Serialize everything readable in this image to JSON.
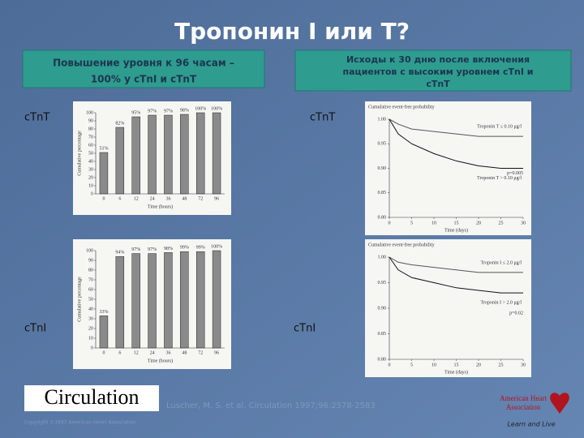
{
  "title": "Тропонин I или T?",
  "box_left": {
    "lines": [
      "Повышение уровня к 96 часам –",
      "100% у cTnI  и cTnT"
    ]
  },
  "box_right": {
    "lines": [
      "Исходы к 30 дню после включения",
      "пациентов с высоким уровнем cTnI  и",
      "cTnT"
    ]
  },
  "labels": [
    "cTnT",
    "cTnT",
    "cTnI",
    "cTnI"
  ],
  "citation": "Luscher, M. S. et al. Circulation 1997;96:2578-2583",
  "journal_logo": "Circulation",
  "copyright": "Copyright ©1997 American Heart Association",
  "aha_logo": {
    "lines": [
      "American Heart",
      "Association"
    ],
    "tagline": "Learn and Live"
  },
  "chart_data": [
    {
      "type": "bar",
      "x_label": "Time (hours)",
      "y_label": "Cumulative percentage",
      "categories": [
        "0",
        "6",
        "12",
        "24",
        "36",
        "48",
        "72",
        "96"
      ],
      "values": [
        51,
        82,
        95,
        97,
        97,
        98,
        100,
        100
      ],
      "value_labels": [
        "51%",
        "82%",
        "95%",
        "97%",
        "97%",
        "98%",
        "100%",
        "100%"
      ],
      "color": "#8a8a8a",
      "ylim": [
        0,
        100
      ],
      "yticks": [
        0,
        10,
        20,
        30,
        40,
        50,
        60,
        70,
        80,
        90,
        100
      ]
    },
    {
      "type": "bar",
      "x_label": "Time (hours)",
      "y_label": "Cumulative percentage",
      "categories": [
        "0",
        "6",
        "12",
        "24",
        "36",
        "48",
        "72",
        "96"
      ],
      "values": [
        33,
        94,
        97,
        97,
        98,
        99,
        99,
        100
      ],
      "value_labels": [
        "33%",
        "94%",
        "97%",
        "97%",
        "98%",
        "99%",
        "99%",
        "100%"
      ],
      "color": "#8a8a8a",
      "ylim": [
        0,
        100
      ],
      "yticks": [
        0,
        10,
        20,
        30,
        40,
        50,
        60,
        70,
        80,
        90,
        100
      ]
    },
    {
      "type": "line",
      "title": "Cumulative event-free probability",
      "x_label": "Time (days)",
      "x": [
        0,
        2,
        5,
        10,
        15,
        20,
        25,
        30
      ],
      "series": [
        {
          "name": "Troponin T ≤ 0.10 μg/l",
          "color": "#555555",
          "values": [
            1,
            0.99,
            0.98,
            0.975,
            0.97,
            0.965,
            0.965,
            0.965
          ]
        },
        {
          "name": "Troponin T > 0.10 μg/l",
          "color": "#111111",
          "values": [
            1,
            0.97,
            0.95,
            0.93,
            0.915,
            0.905,
            0.9,
            0.9
          ]
        }
      ],
      "annotation": "p=0.005",
      "xlim": [
        0,
        30
      ],
      "xticks": [
        0,
        5,
        10,
        15,
        20,
        25,
        30
      ],
      "ylim": [
        0.8,
        1
      ],
      "yticks": [
        {
          "value": 0.8,
          "label": "0.80"
        },
        0.85,
        {
          "value": 0.9,
          "label": "0.90"
        },
        0.95,
        {
          "value": 1,
          "label": "1.00"
        }
      ]
    },
    {
      "type": "line",
      "title": "Cumulative event-free probability",
      "x_label": "Time (days)",
      "x": [
        0,
        2,
        5,
        10,
        15,
        20,
        25,
        30
      ],
      "series": [
        {
          "name": "Troponin I ≤ 2.0 μg/l",
          "color": "#555555",
          "values": [
            1,
            0.99,
            0.985,
            0.98,
            0.975,
            0.97,
            0.97,
            0.97
          ]
        },
        {
          "name": "Troponin I > 2.0 μg/l",
          "color": "#111111",
          "values": [
            1,
            0.975,
            0.96,
            0.95,
            0.94,
            0.935,
            0.93,
            0.93
          ]
        }
      ],
      "annotation": "p=0.02",
      "xlim": [
        0,
        30
      ],
      "xticks": [
        0,
        5,
        10,
        15,
        20,
        25,
        30
      ],
      "ylim": [
        0.8,
        1
      ],
      "yticks": [
        {
          "value": 0.8,
          "label": "0.80"
        },
        0.85,
        {
          "value": 0.9,
          "label": "0.90"
        },
        0.95,
        {
          "value": 1,
          "label": "1.00"
        }
      ]
    }
  ]
}
